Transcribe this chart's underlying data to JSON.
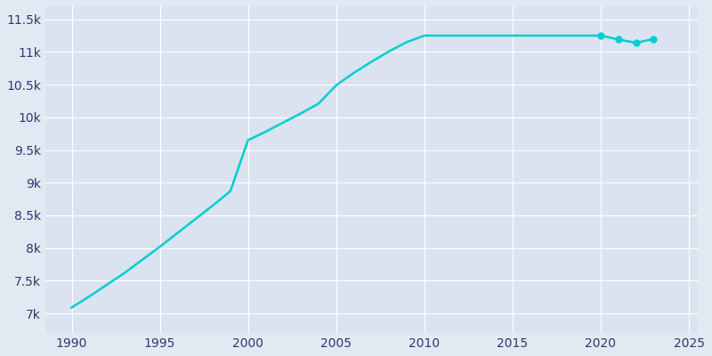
{
  "years": [
    1990,
    1991,
    1992,
    1993,
    1994,
    1995,
    1996,
    1997,
    1998,
    1999,
    2000,
    2001,
    2002,
    2003,
    2004,
    2005,
    2006,
    2007,
    2008,
    2009,
    2010,
    2011,
    2012,
    2013,
    2014,
    2015,
    2016,
    2017,
    2018,
    2019,
    2020,
    2021,
    2022,
    2023
  ],
  "population": [
    7090,
    7260,
    7440,
    7620,
    7820,
    8020,
    8230,
    8440,
    8650,
    8870,
    9650,
    9780,
    9920,
    10060,
    10210,
    10490,
    10680,
    10850,
    11010,
    11150,
    11250,
    11250,
    11250,
    11250,
    11250,
    11250,
    11250,
    11250,
    11250,
    11250,
    11250,
    11190,
    11140,
    11200
  ],
  "marker_years": [
    2020,
    2021,
    2022,
    2023
  ],
  "marker_populations": [
    11250,
    11190,
    11140,
    11200
  ],
  "line_color": "#00CED1",
  "marker_color": "#00CED1",
  "background_color": "#E3E9F3",
  "plot_bg_color": "#DAE3EF",
  "grid_color": "#FFFFFF",
  "text_color": "#2B3A6B",
  "ylim": [
    6700,
    11700
  ],
  "xlim": [
    1988.5,
    2025.5
  ],
  "ytick_values": [
    7000,
    7500,
    8000,
    8500,
    9000,
    9500,
    10000,
    10500,
    11000,
    11500
  ],
  "ytick_labels": [
    "7k",
    "7.5k",
    "8k",
    "8.5k",
    "9k",
    "9.5k",
    "10k",
    "10.5k",
    "11k",
    "11.5k"
  ],
  "xtick_values": [
    1990,
    1995,
    2000,
    2005,
    2010,
    2015,
    2020,
    2025
  ],
  "linewidth": 1.8,
  "markersize": 5,
  "figsize": [
    8.0,
    4.0
  ],
  "dpi": 100
}
